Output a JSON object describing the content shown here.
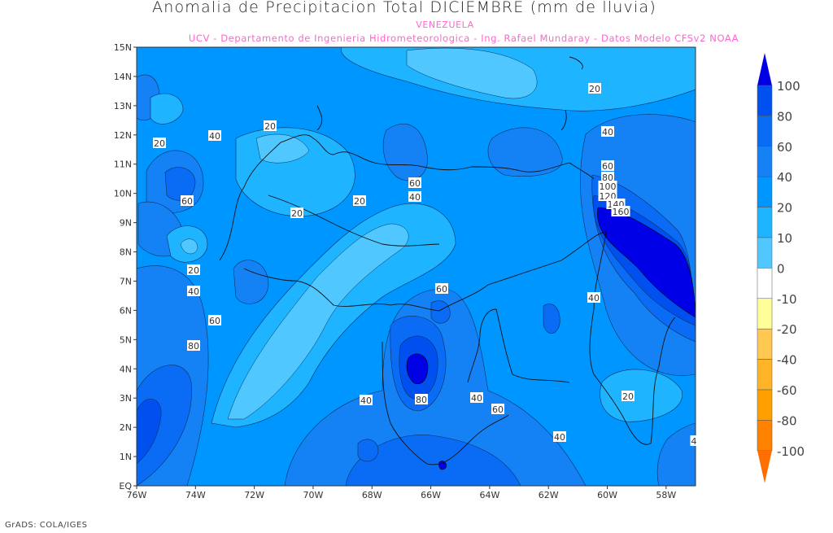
{
  "title": "Anomalia de Precipitacion Total DICIEMBRE (mm de lluvia)",
  "subtitle_region": "VENEZUELA",
  "subtitle_credit": "UCV - Departamento de Ingenieria Hidrometeorologica - Ing. Rafael Mundaray - Datos Modelo CFSv2 NOAA",
  "footer": "GrADS: COLA/IGES",
  "map": {
    "lon_range": [
      -76,
      -57
    ],
    "lat_range": [
      0,
      15
    ],
    "lat_labels": [
      "15N",
      "14N",
      "13N",
      "12N",
      "11N",
      "10N",
      "9N",
      "8N",
      "7N",
      "6N",
      "5N",
      "4N",
      "3N",
      "2N",
      "1N",
      "EQ"
    ],
    "lon_labels": [
      "76W",
      "74W",
      "72W",
      "70W",
      "68W",
      "66W",
      "64W",
      "62W",
      "60W",
      "58W"
    ],
    "contour_labels": [
      "20",
      "40",
      "60",
      "80",
      "100",
      "120",
      "140",
      "160",
      "20",
      "40",
      "20",
      "60",
      "20",
      "20",
      "60",
      "40",
      "20",
      "40",
      "60",
      "80",
      "60",
      "40",
      "40",
      "80",
      "40",
      "60",
      "40",
      "20",
      "4"
    ]
  },
  "colorbar": {
    "labels": [
      "100",
      "80",
      "60",
      "40",
      "20",
      "10",
      "0",
      "-10",
      "-20",
      "-40",
      "-60",
      "-80",
      "-100"
    ],
    "colors": [
      "#0000e6",
      "#0050f0",
      "#0a6cf5",
      "#1482f5",
      "#0096ff",
      "#1eb4ff",
      "#50c8ff",
      "#ffffff",
      "#ffff99",
      "#ffc850",
      "#ffb428",
      "#ffa000",
      "#ff8200",
      "#ff6e00"
    ]
  }
}
